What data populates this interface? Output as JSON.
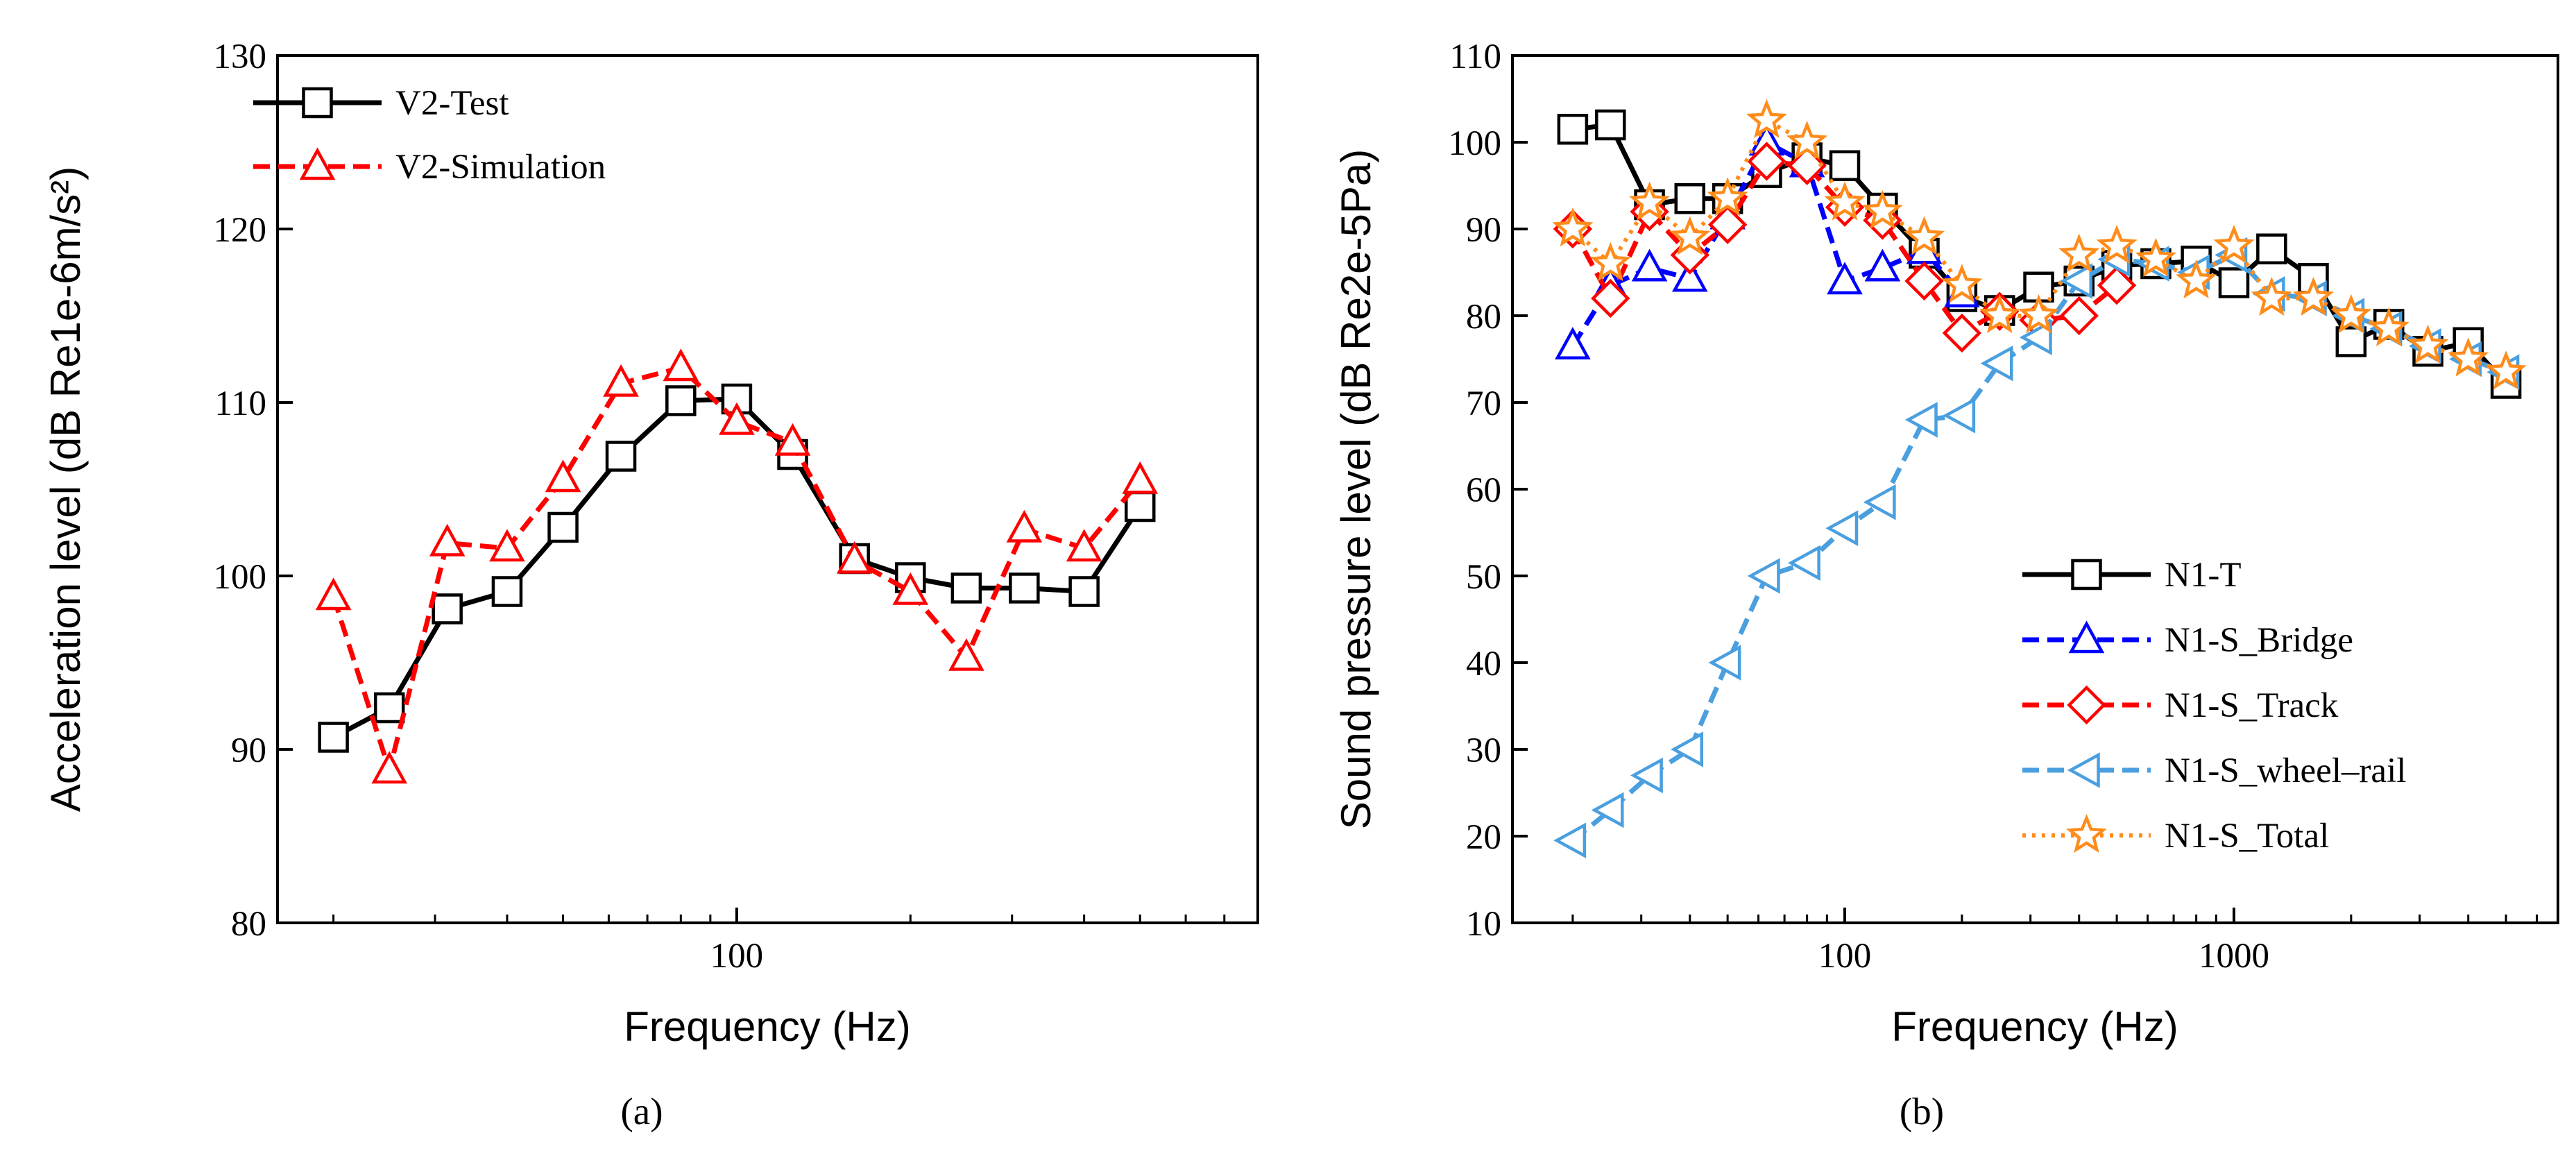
{
  "chart_data": [
    {
      "type": "line",
      "panel_label": "(a)",
      "xlabel": "Frequency (Hz)",
      "ylabel": "Acceleration level (dB Re1e-6m/s²)",
      "xscale": "log",
      "xlim": [
        16,
        800
      ],
      "ylim": [
        80,
        130
      ],
      "xticks": [
        {
          "value": 100,
          "label": "100"
        }
      ],
      "yticks": [
        80,
        90,
        100,
        110,
        120,
        130
      ],
      "grid": false,
      "legend_position": "top-left",
      "series": [
        {
          "name": "V2-Test",
          "color": "#000000",
          "dash": "solid",
          "marker": "square",
          "x": [
            20,
            25,
            31.5,
            40,
            50,
            63,
            80,
            100,
            125,
            160,
            200,
            250,
            315,
            400,
            500
          ],
          "y": [
            90.7,
            92.4,
            98.1,
            99.1,
            102.8,
            106.9,
            110.1,
            110.2,
            107.0,
            101.0,
            99.9,
            99.3,
            99.3,
            99.1,
            104.0
          ]
        },
        {
          "name": "V2-Simulation",
          "color": "#ff0000",
          "dash": "dashed",
          "marker": "triangle-up",
          "x": [
            20,
            25,
            31.5,
            40,
            50,
            63,
            80,
            100,
            125,
            160,
            200,
            250,
            315,
            400,
            500
          ],
          "y": [
            98.8,
            88.8,
            101.9,
            101.6,
            105.6,
            111.1,
            112.0,
            108.9,
            107.7,
            100.9,
            99.1,
            95.3,
            102.7,
            101.6,
            105.5
          ]
        }
      ]
    },
    {
      "type": "line",
      "panel_label": "(b)",
      "xlabel": "Frequency (Hz)",
      "ylabel": "Sound pressure level (dB Re2e-5Pa)",
      "xscale": "log",
      "xlim": [
        14,
        6800
      ],
      "ylim": [
        10,
        110
      ],
      "xticks": [
        {
          "value": 100,
          "label": "100"
        },
        {
          "value": 1000,
          "label": "1000"
        }
      ],
      "yticks": [
        10,
        20,
        30,
        40,
        50,
        60,
        70,
        80,
        90,
        100,
        110
      ],
      "grid": false,
      "legend_position": "bottom-right",
      "series": [
        {
          "name": "N1-T",
          "color": "#000000",
          "dash": "solid",
          "marker": "square",
          "x": [
            20,
            25,
            31.5,
            40,
            50,
            63,
            80,
            100,
            125,
            160,
            200,
            250,
            315,
            400,
            500,
            630,
            800,
            1000,
            1250,
            1600,
            2000,
            2500,
            3150,
            4000,
            5000
          ],
          "y": [
            101.5,
            102.0,
            92.8,
            93.5,
            93.5,
            96.5,
            98.2,
            97.3,
            92.4,
            87.2,
            82.2,
            80.6,
            83.3,
            84.0,
            85.8,
            86.0,
            86.3,
            83.8,
            87.7,
            84.3,
            77.0,
            79.0,
            75.9,
            76.9,
            72.2
          ]
        },
        {
          "name": "N1-S_Bridge",
          "color": "#0000ff",
          "dash": "dashed",
          "marker": "triangle-up",
          "x": [
            20,
            25,
            31.5,
            40,
            50,
            63,
            80,
            100,
            125,
            160,
            200
          ],
          "y": [
            76.5,
            83.5,
            85.5,
            84.3,
            91.5,
            100.0,
            97.5,
            84.0,
            85.5,
            87.5,
            82.5
          ]
        },
        {
          "name": "N1-S_Track",
          "color": "#ff0000",
          "dash": "dashed",
          "marker": "diamond",
          "x": [
            20,
            25,
            31.5,
            40,
            50,
            63,
            80,
            100,
            125,
            160,
            200,
            250,
            315,
            400,
            500
          ],
          "y": [
            90.0,
            82.0,
            92.0,
            87.0,
            90.5,
            97.8,
            97.3,
            92.5,
            91.0,
            84.0,
            78.0,
            80.5,
            79.5,
            80.0,
            83.5
          ]
        },
        {
          "name": "N1-S_wheel–rail",
          "color": "#4a9fdf",
          "dash": "dashed",
          "marker": "triangle-left",
          "x": [
            20,
            25,
            31.5,
            40,
            50,
            63,
            80,
            100,
            125,
            160,
            200,
            250,
            315,
            400,
            500,
            630,
            800,
            1000,
            1250,
            1600,
            2000,
            2500,
            3150,
            4000,
            5000
          ],
          "y": [
            19.5,
            23.0,
            27.0,
            30.0,
            40.0,
            50.0,
            51.5,
            55.5,
            58.5,
            68.0,
            68.5,
            74.5,
            77.5,
            84.0,
            86.5,
            86.0,
            85.0,
            87.0,
            82.5,
            82.0,
            80.0,
            78.5,
            76.5,
            75.0,
            73.5
          ]
        },
        {
          "name": "N1-S_Total",
          "color": "#ff8c1a",
          "dash": "dotted",
          "marker": "star",
          "x": [
            20,
            25,
            31.5,
            40,
            50,
            63,
            80,
            100,
            125,
            160,
            200,
            250,
            315,
            400,
            500,
            630,
            800,
            1000,
            1250,
            1600,
            2000,
            2500,
            3150,
            4000,
            5000
          ],
          "y": [
            90.0,
            86.0,
            93.0,
            89.0,
            93.5,
            102.5,
            100.0,
            93.0,
            92.0,
            89.0,
            83.5,
            80.0,
            80.0,
            87.0,
            88.0,
            86.5,
            84.0,
            88.0,
            82.0,
            82.0,
            80.0,
            78.5,
            76.5,
            75.0,
            73.5
          ]
        }
      ]
    }
  ]
}
